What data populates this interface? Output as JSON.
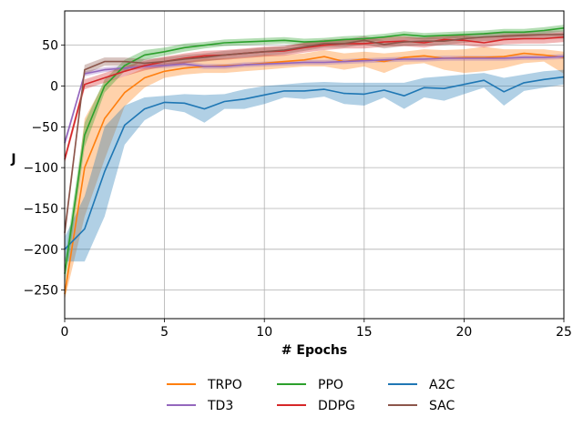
{
  "chart_data": {
    "type": "line",
    "title": "",
    "xlabel": "# Epochs",
    "ylabel": "J",
    "xlim": [
      0,
      25
    ],
    "ylim": [
      -285,
      92
    ],
    "xticks": [
      0,
      5,
      10,
      15,
      20,
      25
    ],
    "yticks": [
      -250,
      -200,
      -150,
      -100,
      -50,
      0,
      50
    ],
    "grid": true,
    "legend_position": "below plot, 3 columns",
    "x": [
      0,
      1,
      2,
      3,
      4,
      5,
      6,
      7,
      8,
      9,
      10,
      11,
      12,
      13,
      14,
      15,
      16,
      17,
      18,
      19,
      20,
      21,
      22,
      23,
      24,
      25
    ],
    "series": [
      {
        "name": "TRPO",
        "color": "#ff7f0e",
        "values": [
          -255,
          -100,
          -40,
          -8,
          10,
          18,
          22,
          24,
          25,
          26,
          28,
          30,
          32,
          36,
          30,
          33,
          30,
          35,
          37,
          34,
          35,
          35,
          36,
          40,
          38,
          35
        ],
        "lower": [
          -262,
          -160,
          -90,
          -25,
          -2,
          10,
          14,
          16,
          16,
          18,
          20,
          22,
          24,
          24,
          20,
          24,
          16,
          26,
          28,
          20,
          16,
          18,
          22,
          28,
          30,
          15
        ],
        "upper": [
          -248,
          -40,
          5,
          12,
          22,
          25,
          30,
          33,
          34,
          35,
          38,
          38,
          40,
          44,
          40,
          42,
          40,
          42,
          45,
          44,
          45,
          48,
          45,
          45,
          45,
          42
        ]
      },
      {
        "name": "TD3",
        "color": "#9467bd",
        "values": [
          -70,
          15,
          20,
          22,
          24,
          25,
          27,
          24,
          24,
          26,
          27,
          28,
          29,
          29,
          30,
          31,
          32,
          33,
          33,
          34,
          34,
          34,
          34,
          35,
          35,
          36
        ],
        "lower": [
          -75,
          12,
          17,
          19,
          21,
          22,
          24,
          21,
          21,
          23,
          24,
          25,
          26,
          26,
          27,
          28,
          29,
          30,
          30,
          31,
          31,
          31,
          31,
          32,
          32,
          33
        ],
        "upper": [
          -65,
          18,
          23,
          25,
          27,
          28,
          30,
          27,
          27,
          29,
          30,
          31,
          32,
          32,
          33,
          34,
          35,
          36,
          36,
          37,
          37,
          37,
          37,
          38,
          38,
          39
        ]
      },
      {
        "name": "PPO",
        "color": "#2ca02c",
        "values": [
          -230,
          -60,
          0,
          25,
          38,
          42,
          47,
          50,
          53,
          54,
          55,
          56,
          54,
          55,
          57,
          58,
          60,
          63,
          61,
          62,
          63,
          64,
          66,
          66,
          68,
          71
        ],
        "lower": [
          -245,
          -75,
          -8,
          18,
          32,
          37,
          42,
          46,
          49,
          50,
          51,
          52,
          50,
          51,
          53,
          54,
          56,
          59,
          57,
          58,
          59,
          60,
          62,
          62,
          64,
          67
        ],
        "upper": [
          -215,
          -45,
          8,
          32,
          44,
          47,
          52,
          54,
          57,
          58,
          59,
          60,
          58,
          59,
          61,
          62,
          64,
          67,
          65,
          66,
          67,
          68,
          70,
          70,
          72,
          75
        ]
      },
      {
        "name": "DDPG",
        "color": "#d62728",
        "values": [
          -90,
          2,
          10,
          18,
          25,
          30,
          34,
          37,
          38,
          40,
          42,
          43,
          47,
          50,
          52,
          52,
          54,
          55,
          53,
          57,
          56,
          53,
          57,
          58,
          58,
          60
        ],
        "lower": [
          -95,
          -4,
          4,
          12,
          19,
          24,
          28,
          31,
          32,
          34,
          36,
          37,
          41,
          44,
          46,
          46,
          48,
          49,
          47,
          51,
          50,
          47,
          51,
          52,
          52,
          54
        ],
        "upper": [
          -85,
          8,
          16,
          24,
          31,
          36,
          40,
          43,
          44,
          46,
          48,
          49,
          53,
          56,
          58,
          58,
          60,
          61,
          59,
          63,
          62,
          59,
          63,
          64,
          64,
          66
        ]
      },
      {
        "name": "A2C",
        "color": "#1f77b4",
        "values": [
          -200,
          -175,
          -105,
          -48,
          -28,
          -20,
          -21,
          -28,
          -19,
          -16,
          -11,
          -6,
          -6,
          -4,
          -9,
          -10,
          -5,
          -12,
          -2,
          -3,
          2,
          7,
          -7,
          4,
          8,
          11
        ],
        "lower": [
          -215,
          -215,
          -160,
          -72,
          -42,
          -28,
          -32,
          -45,
          -28,
          -28,
          -22,
          -14,
          -16,
          -13,
          -22,
          -24,
          -14,
          -28,
          -14,
          -18,
          -10,
          -2,
          -24,
          -6,
          -2,
          2
        ],
        "upper": [
          -185,
          -135,
          -50,
          -24,
          -14,
          -12,
          -10,
          -11,
          -10,
          -4,
          0,
          2,
          4,
          5,
          4,
          4,
          4,
          4,
          10,
          12,
          14,
          16,
          10,
          14,
          18,
          20
        ]
      },
      {
        "name": "SAC",
        "color": "#8c564b",
        "values": [
          -180,
          20,
          30,
          30,
          28,
          30,
          33,
          35,
          38,
          40,
          42,
          44,
          48,
          52,
          52,
          56,
          51,
          54,
          55,
          55,
          58,
          60,
          61,
          62,
          63,
          63
        ],
        "lower": [
          -190,
          14,
          25,
          25,
          23,
          25,
          28,
          30,
          33,
          35,
          37,
          39,
          43,
          47,
          47,
          51,
          46,
          49,
          50,
          50,
          53,
          55,
          56,
          57,
          58,
          58
        ],
        "upper": [
          -170,
          26,
          35,
          35,
          33,
          35,
          38,
          40,
          43,
          45,
          47,
          49,
          53,
          57,
          57,
          61,
          56,
          59,
          60,
          60,
          63,
          65,
          66,
          67,
          68,
          68
        ]
      }
    ],
    "legend_order": [
      "TRPO",
      "TD3",
      "PPO",
      "DDPG",
      "A2C",
      "SAC"
    ],
    "draw_order": [
      "TRPO",
      "A2C",
      "TD3",
      "PPO",
      "DDPG",
      "SAC"
    ]
  }
}
